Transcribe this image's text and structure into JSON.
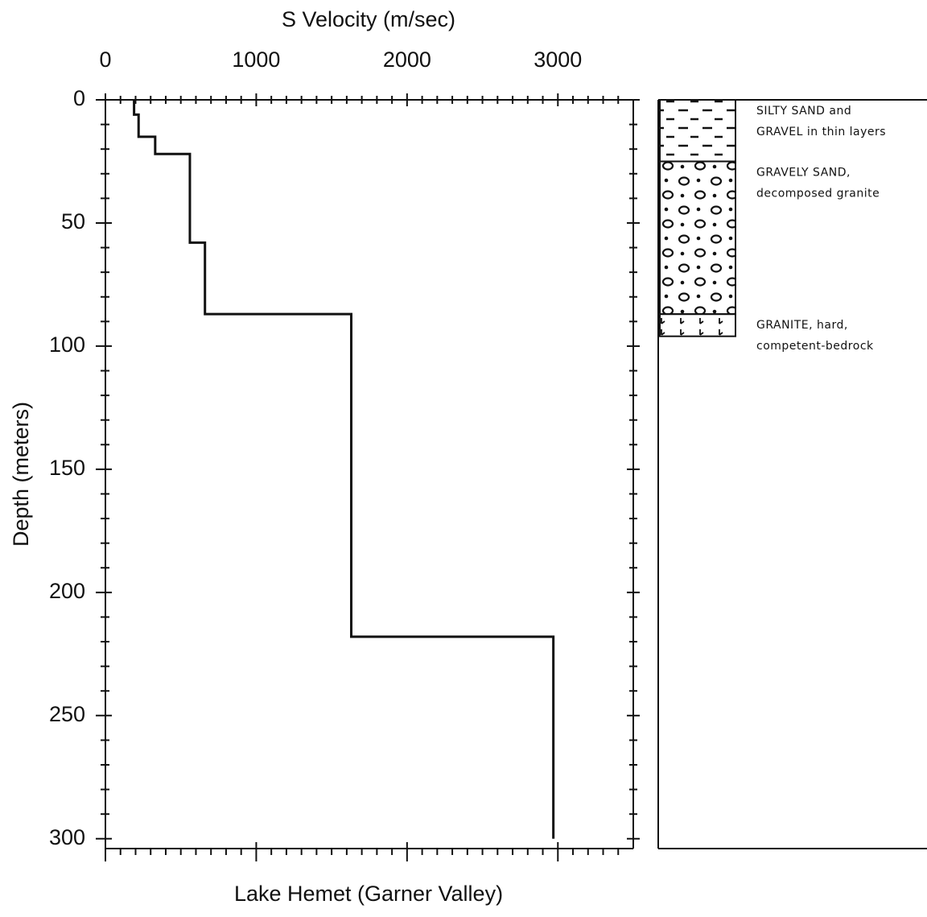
{
  "chart_data": {
    "type": "line",
    "title": "Lake Hemet (Garner Valley)",
    "x_label": "S Velocity (m/sec)",
    "y_label": "Depth (meters)",
    "xlim": [
      0,
      3500
    ],
    "ylim": [
      0,
      304
    ],
    "xticks": [
      0,
      1000,
      2000,
      3000
    ],
    "yticks": [
      0,
      50,
      100,
      150,
      200,
      250,
      300
    ],
    "xminorticks": [
      100,
      200,
      300,
      400,
      500,
      600,
      700,
      800,
      900,
      1100,
      1200,
      1300,
      1400,
      1500,
      1600,
      1700,
      1800,
      1900,
      2100,
      2200,
      2300,
      2400,
      2500,
      2600,
      2700,
      2800,
      2900,
      3100,
      3200,
      3300,
      3400
    ],
    "yminorticks": [
      10,
      20,
      30,
      40,
      60,
      70,
      80,
      90,
      110,
      120,
      130,
      140,
      160,
      170,
      180,
      190,
      210,
      220,
      230,
      240,
      260,
      270,
      280,
      290
    ],
    "color": "#111111",
    "x": [
      190,
      190,
      220,
      220,
      330,
      330,
      560,
      560,
      660,
      660,
      1630,
      1630,
      2970,
      2970
    ],
    "values": [
      0,
      6,
      6,
      15,
      15,
      22,
      22,
      58,
      58,
      87,
      87,
      218,
      218,
      300
    ],
    "layers": [
      {
        "lines": [
          "SILTY SAND and",
          "GRAVEL in thin layers"
        ],
        "top": 0,
        "bottom": 25
      },
      {
        "lines": [
          "GRAVELY SAND,",
          "decomposed granite"
        ],
        "top": 25,
        "bottom": 87
      },
      {
        "lines": [
          "GRANITE, hard,",
          "competent-bedrock"
        ],
        "top": 87,
        "bottom": 96
      }
    ]
  }
}
